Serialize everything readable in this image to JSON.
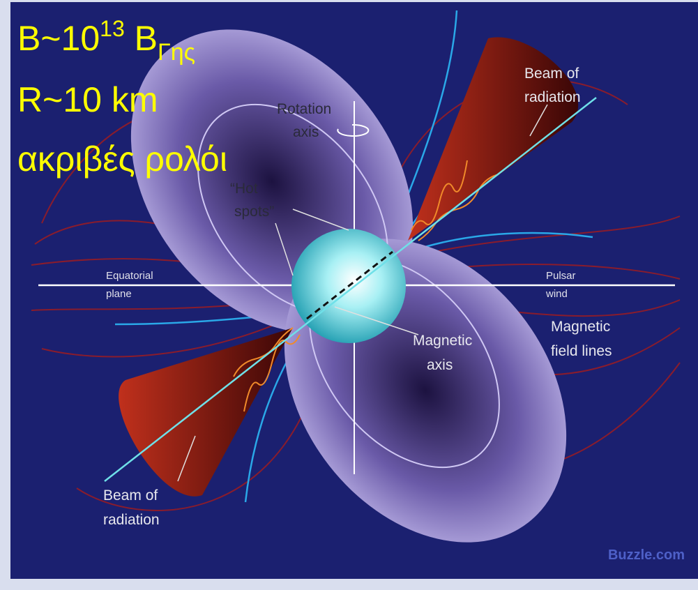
{
  "overlay": {
    "line1": {
      "base": "B~10",
      "sup": "13",
      "mid": " B",
      "sub": "Γης"
    },
    "line2": "R~10 km",
    "line3": "ακριβές ρολόι"
  },
  "labels": {
    "beam_top": [
      "Beam of",
      "radiation"
    ],
    "rotation_axis": [
      "Rotation",
      "axis"
    ],
    "hot_spots": [
      "“Hot",
      "spots”"
    ],
    "equatorial_plane": [
      "Equatorial",
      "plane"
    ],
    "pulsar_wind": [
      "Pulsar",
      "wind"
    ],
    "magnetic_field_lines": [
      "Magnetic",
      "field lines"
    ],
    "magnetic_axis": [
      "Magnetic",
      "axis"
    ],
    "beam_bottom": [
      "Beam of",
      "radiation"
    ]
  },
  "credit": "Buzzle.com"
}
